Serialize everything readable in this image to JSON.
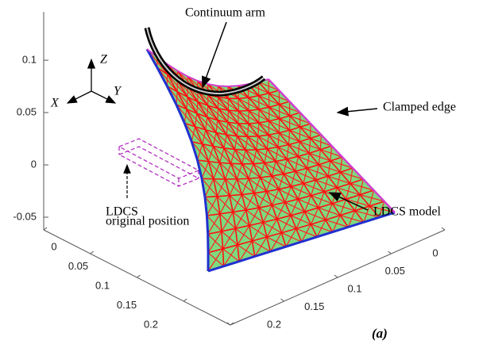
{
  "chart_data": {
    "type": "surface3d",
    "annotations": [
      "Continuum arm",
      "Clamped edge",
      "LDCS model",
      "LDCS",
      "original position"
    ],
    "panel_label": "(a)",
    "axis_labels": {
      "x": "X",
      "y": "Y",
      "z": "Z"
    },
    "zticks": [
      -0.05,
      0,
      0.05,
      0.1
    ],
    "xticks": [
      0,
      0.05,
      0.1,
      0.15,
      0.2
    ],
    "yticks": [
      0,
      0.05,
      0.1,
      0.15,
      0.2
    ]
  }
}
